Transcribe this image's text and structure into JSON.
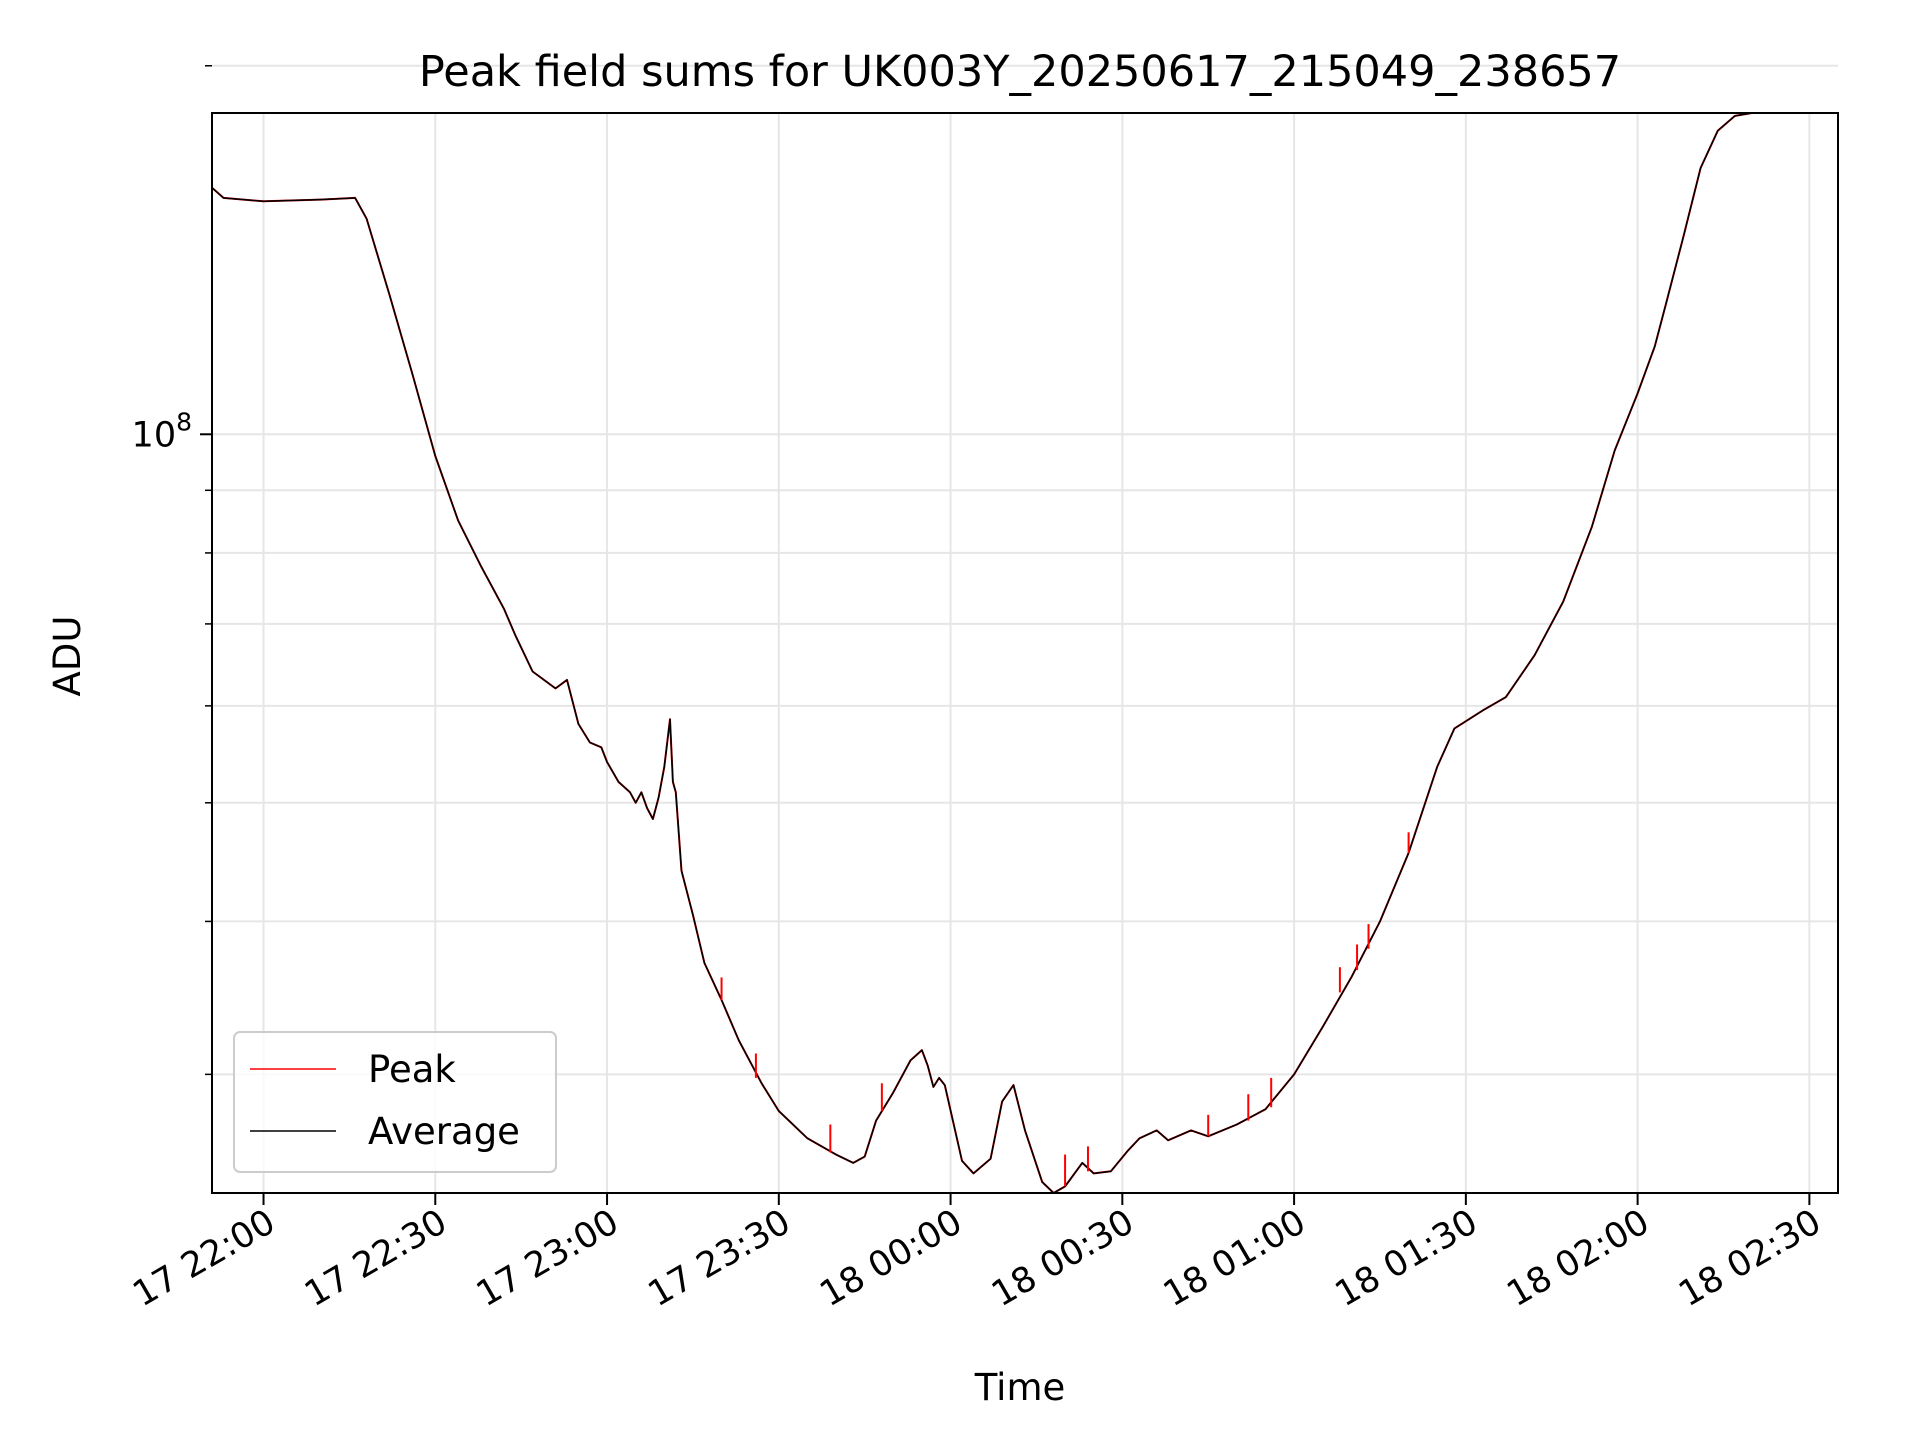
{
  "chart_data": {
    "type": "line",
    "title": "Peak field sums for UK003Y_20250617_215049_238657",
    "xlabel": "Time",
    "ylabel": "ADU",
    "y_scale": "log",
    "grid": true,
    "legend_position": "lower-left",
    "xlim": [
      "2025-06-17 21:51",
      "2025-06-18 02:35"
    ],
    "ylim": [
      24000000,
      183000000
    ],
    "x_ticks": [
      {
        "t": "2025-06-17 22:00",
        "label": "17 22:00"
      },
      {
        "t": "2025-06-17 22:30",
        "label": "17 22:30"
      },
      {
        "t": "2025-06-17 23:00",
        "label": "17 23:00"
      },
      {
        "t": "2025-06-17 23:30",
        "label": "17 23:30"
      },
      {
        "t": "2025-06-18 00:00",
        "label": "18 00:00"
      },
      {
        "t": "2025-06-18 00:30",
        "label": "18 00:30"
      },
      {
        "t": "2025-06-18 01:00",
        "label": "18 01:00"
      },
      {
        "t": "2025-06-18 01:30",
        "label": "18 01:30"
      },
      {
        "t": "2025-06-18 02:00",
        "label": "18 02:00"
      },
      {
        "t": "2025-06-18 02:30",
        "label": "18 02:30"
      }
    ],
    "y_major_ticks": [
      {
        "value": 100000000,
        "base": "10",
        "exp": "8"
      }
    ],
    "y_minor_ticks": [
      30000000,
      40000000,
      50000000,
      60000000,
      70000000,
      80000000,
      90000000,
      200000000
    ],
    "series": [
      {
        "name": "Peak",
        "color": "#ff0000",
        "points": [
          [
            "2025-06-17 21:51",
            159000000
          ],
          [
            "2025-06-17 21:53",
            156000000
          ],
          [
            "2025-06-17 22:00",
            155000000
          ],
          [
            "2025-06-17 22:10",
            155500000
          ],
          [
            "2025-06-17 22:16",
            156000000
          ],
          [
            "2025-06-17 22:18",
            150000000
          ],
          [
            "2025-06-17 22:22",
            130000000
          ],
          [
            "2025-06-17 22:26",
            112000000
          ],
          [
            "2025-06-17 22:30",
            96000000
          ],
          [
            "2025-06-17 22:34",
            85000000
          ],
          [
            "2025-06-17 22:38",
            78000000
          ],
          [
            "2025-06-17 22:42",
            72000000
          ],
          [
            "2025-06-17 22:44",
            68500000
          ],
          [
            "2025-06-17 22:47",
            64000000
          ],
          [
            "2025-06-17 22:51",
            62000000
          ],
          [
            "2025-06-17 22:53",
            63000000
          ],
          [
            "2025-06-17 22:55",
            58000000
          ],
          [
            "2025-06-17 22:57",
            56000000
          ],
          [
            "2025-06-17 22:59",
            55500000
          ],
          [
            "2025-06-17 23:00",
            54000000
          ],
          [
            "2025-06-17 23:02",
            52000000
          ],
          [
            "2025-06-17 23:04",
            51000000
          ],
          [
            "2025-06-17 23:05",
            50000000
          ],
          [
            "2025-06-17 23:06",
            51000000
          ],
          [
            "2025-06-17 23:07",
            49500000
          ],
          [
            "2025-06-17 23:08",
            48500000
          ],
          [
            "2025-06-17 23:09",
            50500000
          ],
          [
            "2025-06-17 23:10",
            53500000
          ],
          [
            "2025-06-17 23:11",
            58500000
          ],
          [
            "2025-06-17 23:11:30",
            52000000
          ],
          [
            "2025-06-17 23:12",
            51000000
          ],
          [
            "2025-06-17 23:13",
            44000000
          ],
          [
            "2025-06-17 23:15",
            40500000
          ],
          [
            "2025-06-17 23:17",
            37000000
          ],
          [
            "2025-06-17 23:20",
            34500000
          ],
          [
            "2025-06-17 23:23",
            32000000
          ],
          [
            "2025-06-17 23:27",
            29500000
          ],
          [
            "2025-06-17 23:30",
            28000000
          ],
          [
            "2025-06-17 23:35",
            26600000
          ],
          [
            "2025-06-17 23:40",
            25800000
          ],
          [
            "2025-06-17 23:43",
            25400000
          ],
          [
            "2025-06-17 23:45",
            25700000
          ],
          [
            "2025-06-17 23:47",
            27500000
          ],
          [
            "2025-06-17 23:50",
            29000000
          ],
          [
            "2025-06-17 23:53",
            30800000
          ],
          [
            "2025-06-17 23:55",
            31400000
          ],
          [
            "2025-06-17 23:56",
            30500000
          ],
          [
            "2025-06-17 23:57",
            29300000
          ],
          [
            "2025-06-17 23:58",
            29800000
          ],
          [
            "2025-06-17 23:59",
            29400000
          ],
          [
            "2025-06-18 00:02",
            25500000
          ],
          [
            "2025-06-18 00:04",
            24900000
          ],
          [
            "2025-06-18 00:07",
            25600000
          ],
          [
            "2025-06-18 00:09",
            28500000
          ],
          [
            "2025-06-18 00:11",
            29400000
          ],
          [
            "2025-06-18 00:13",
            27000000
          ],
          [
            "2025-06-18 00:16",
            24500000
          ],
          [
            "2025-06-18 00:18",
            24000000
          ],
          [
            "2025-06-18 00:20",
            24300000
          ],
          [
            "2025-06-18 00:23",
            25400000
          ],
          [
            "2025-06-18 00:25",
            24900000
          ],
          [
            "2025-06-18 00:28",
            25000000
          ],
          [
            "2025-06-18 00:31",
            26000000
          ],
          [
            "2025-06-18 00:33",
            26600000
          ],
          [
            "2025-06-18 00:36",
            27000000
          ],
          [
            "2025-06-18 00:38",
            26500000
          ],
          [
            "2025-06-18 00:42",
            27000000
          ],
          [
            "2025-06-18 00:45",
            26700000
          ],
          [
            "2025-06-18 00:50",
            27300000
          ],
          [
            "2025-06-18 00:55",
            28100000
          ],
          [
            "2025-06-18 01:00",
            30000000
          ],
          [
            "2025-06-18 01:05",
            32800000
          ],
          [
            "2025-06-18 01:10",
            36000000
          ],
          [
            "2025-06-18 01:15",
            40000000
          ],
          [
            "2025-06-18 01:20",
            45500000
          ],
          [
            "2025-06-18 01:25",
            53500000
          ],
          [
            "2025-06-18 01:28",
            57500000
          ],
          [
            "2025-06-18 01:33",
            59500000
          ],
          [
            "2025-06-18 01:37",
            61000000
          ],
          [
            "2025-06-18 01:42",
            66000000
          ],
          [
            "2025-06-18 01:47",
            73000000
          ],
          [
            "2025-06-18 01:52",
            84000000
          ],
          [
            "2025-06-18 01:56",
            97000000
          ],
          [
            "2025-06-18 02:00",
            108000000
          ],
          [
            "2025-06-18 02:03",
            118000000
          ],
          [
            "2025-06-18 02:05",
            128000000
          ],
          [
            "2025-06-18 02:08",
            145000000
          ],
          [
            "2025-06-18 02:11",
            165000000
          ],
          [
            "2025-06-18 02:14",
            177000000
          ],
          [
            "2025-06-18 02:17",
            182000000
          ],
          [
            "2025-06-18 02:20",
            183000000
          ],
          [
            "2025-06-18 02:35",
            183000000
          ]
        ]
      },
      {
        "name": "Average",
        "color": "#000000",
        "points": [
          [
            "2025-06-17 21:51",
            159000000
          ],
          [
            "2025-06-17 21:53",
            156000000
          ],
          [
            "2025-06-17 22:00",
            155000000
          ],
          [
            "2025-06-17 22:10",
            155500000
          ],
          [
            "2025-06-17 22:16",
            156000000
          ],
          [
            "2025-06-17 22:18",
            150000000
          ],
          [
            "2025-06-17 22:22",
            130000000
          ],
          [
            "2025-06-17 22:26",
            112000000
          ],
          [
            "2025-06-17 22:30",
            96000000
          ],
          [
            "2025-06-17 22:34",
            85000000
          ],
          [
            "2025-06-17 22:38",
            78000000
          ],
          [
            "2025-06-17 22:42",
            72000000
          ],
          [
            "2025-06-17 22:44",
            68500000
          ],
          [
            "2025-06-17 22:47",
            64000000
          ],
          [
            "2025-06-17 22:51",
            62000000
          ],
          [
            "2025-06-17 22:53",
            63000000
          ],
          [
            "2025-06-17 22:55",
            58000000
          ],
          [
            "2025-06-17 22:57",
            56000000
          ],
          [
            "2025-06-17 22:59",
            55500000
          ],
          [
            "2025-06-17 23:00",
            54000000
          ],
          [
            "2025-06-17 23:02",
            52000000
          ],
          [
            "2025-06-17 23:04",
            51000000
          ],
          [
            "2025-06-17 23:05",
            50000000
          ],
          [
            "2025-06-17 23:06",
            51000000
          ],
          [
            "2025-06-17 23:07",
            49500000
          ],
          [
            "2025-06-17 23:08",
            48500000
          ],
          [
            "2025-06-17 23:09",
            50500000
          ],
          [
            "2025-06-17 23:10",
            53500000
          ],
          [
            "2025-06-17 23:11",
            58500000
          ],
          [
            "2025-06-17 23:11:30",
            52000000
          ],
          [
            "2025-06-17 23:12",
            51000000
          ],
          [
            "2025-06-17 23:13",
            44000000
          ],
          [
            "2025-06-17 23:15",
            40500000
          ],
          [
            "2025-06-17 23:17",
            37000000
          ],
          [
            "2025-06-17 23:20",
            34500000
          ],
          [
            "2025-06-17 23:23",
            32000000
          ],
          [
            "2025-06-17 23:27",
            29500000
          ],
          [
            "2025-06-17 23:30",
            28000000
          ],
          [
            "2025-06-17 23:35",
            26600000
          ],
          [
            "2025-06-17 23:40",
            25800000
          ],
          [
            "2025-06-17 23:43",
            25400000
          ],
          [
            "2025-06-17 23:45",
            25700000
          ],
          [
            "2025-06-17 23:47",
            27500000
          ],
          [
            "2025-06-17 23:50",
            29000000
          ],
          [
            "2025-06-17 23:53",
            30800000
          ],
          [
            "2025-06-17 23:55",
            31400000
          ],
          [
            "2025-06-17 23:56",
            30500000
          ],
          [
            "2025-06-17 23:57",
            29300000
          ],
          [
            "2025-06-17 23:58",
            29800000
          ],
          [
            "2025-06-17 23:59",
            29400000
          ],
          [
            "2025-06-18 00:02",
            25500000
          ],
          [
            "2025-06-18 00:04",
            24900000
          ],
          [
            "2025-06-18 00:07",
            25600000
          ],
          [
            "2025-06-18 00:09",
            28500000
          ],
          [
            "2025-06-18 00:11",
            29400000
          ],
          [
            "2025-06-18 00:13",
            27000000
          ],
          [
            "2025-06-18 00:16",
            24500000
          ],
          [
            "2025-06-18 00:18",
            24000000
          ],
          [
            "2025-06-18 00:20",
            24300000
          ],
          [
            "2025-06-18 00:23",
            25400000
          ],
          [
            "2025-06-18 00:25",
            24900000
          ],
          [
            "2025-06-18 00:28",
            25000000
          ],
          [
            "2025-06-18 00:31",
            26000000
          ],
          [
            "2025-06-18 00:33",
            26600000
          ],
          [
            "2025-06-18 00:36",
            27000000
          ],
          [
            "2025-06-18 00:38",
            26500000
          ],
          [
            "2025-06-18 00:42",
            27000000
          ],
          [
            "2025-06-18 00:45",
            26700000
          ],
          [
            "2025-06-18 00:50",
            27300000
          ],
          [
            "2025-06-18 00:55",
            28100000
          ],
          [
            "2025-06-18 01:00",
            30000000
          ],
          [
            "2025-06-18 01:05",
            32800000
          ],
          [
            "2025-06-18 01:10",
            36000000
          ],
          [
            "2025-06-18 01:15",
            40000000
          ],
          [
            "2025-06-18 01:20",
            45500000
          ],
          [
            "2025-06-18 01:25",
            53500000
          ],
          [
            "2025-06-18 01:28",
            57500000
          ],
          [
            "2025-06-18 01:33",
            59500000
          ],
          [
            "2025-06-18 01:37",
            61000000
          ],
          [
            "2025-06-18 01:42",
            66000000
          ],
          [
            "2025-06-18 01:47",
            73000000
          ],
          [
            "2025-06-18 01:52",
            84000000
          ],
          [
            "2025-06-18 01:56",
            97000000
          ],
          [
            "2025-06-18 02:00",
            108000000
          ],
          [
            "2025-06-18 02:03",
            118000000
          ],
          [
            "2025-06-18 02:05",
            128000000
          ],
          [
            "2025-06-18 02:08",
            145000000
          ],
          [
            "2025-06-18 02:11",
            165000000
          ],
          [
            "2025-06-18 02:14",
            177000000
          ],
          [
            "2025-06-18 02:17",
            182000000
          ],
          [
            "2025-06-18 02:20",
            183000000
          ],
          [
            "2025-06-18 02:35",
            183000000
          ]
        ]
      }
    ],
    "peak_spikes": [
      [
        "2025-06-17 23:20",
        34500000,
        36000000
      ],
      [
        "2025-06-17 23:26",
        29800000,
        31200000
      ],
      [
        "2025-06-17 23:39",
        25900000,
        27300000
      ],
      [
        "2025-06-17 23:48",
        28000000,
        29500000
      ],
      [
        "2025-06-18 00:20",
        24300000,
        25800000
      ],
      [
        "2025-06-18 00:24",
        25000000,
        26200000
      ],
      [
        "2025-06-18 00:45",
        26700000,
        27800000
      ],
      [
        "2025-06-18 00:52",
        27500000,
        28900000
      ],
      [
        "2025-06-18 00:56",
        28200000,
        29800000
      ],
      [
        "2025-06-18 01:08",
        35000000,
        36700000
      ],
      [
        "2025-06-18 01:11",
        36500000,
        38300000
      ],
      [
        "2025-06-18 01:13",
        38000000,
        39800000
      ],
      [
        "2025-06-18 01:20",
        45500000,
        47300000
      ]
    ]
  }
}
